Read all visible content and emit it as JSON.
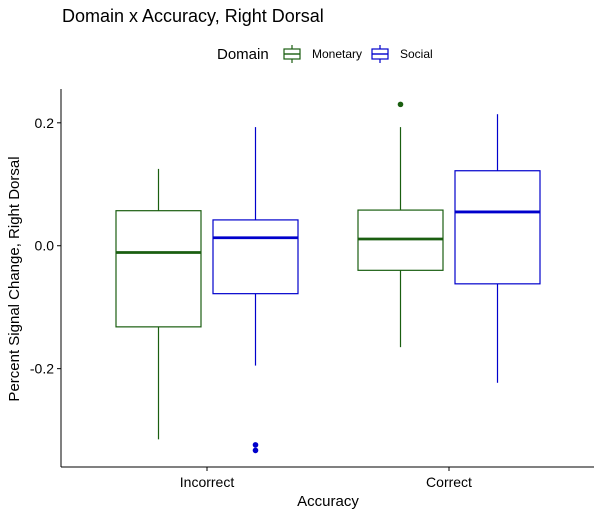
{
  "chart_data": {
    "type": "boxplot",
    "title": "Domain x Accuracy, Right Dorsal",
    "xlabel": "Accuracy",
    "ylabel": "Percent Signal Change, Right Dorsal",
    "categories": [
      "Incorrect",
      "Correct"
    ],
    "ylim": [
      -0.36,
      0.255
    ],
    "yticks": [
      0.2,
      0.0,
      -0.2
    ],
    "ytick_labels": [
      "0.2",
      "0.0",
      "-0.2"
    ],
    "grid": false,
    "legend": {
      "title": "Domain",
      "placement": "top"
    },
    "series": [
      {
        "name": "Monetary",
        "color": "#1a5e10",
        "boxes": [
          {
            "category": "Incorrect",
            "whisker_low": -0.315,
            "q1": -0.132,
            "median": -0.011,
            "q3": 0.057,
            "whisker_high": 0.125,
            "outliers": []
          },
          {
            "category": "Correct",
            "whisker_low": -0.165,
            "q1": -0.04,
            "median": 0.011,
            "q3": 0.058,
            "whisker_high": 0.193,
            "outliers": [
              0.23
            ]
          }
        ]
      },
      {
        "name": "Social",
        "color": "#0000cc",
        "boxes": [
          {
            "category": "Incorrect",
            "whisker_low": -0.195,
            "q1": -0.078,
            "median": 0.013,
            "q3": 0.042,
            "whisker_high": 0.193,
            "outliers": [
              -0.324,
              -0.333
            ]
          },
          {
            "category": "Correct",
            "whisker_low": -0.223,
            "q1": -0.062,
            "median": 0.055,
            "q3": 0.122,
            "whisker_high": 0.214,
            "outliers": []
          }
        ]
      }
    ]
  }
}
